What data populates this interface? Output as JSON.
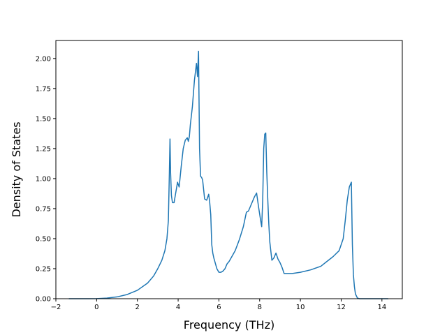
{
  "chart_data": {
    "type": "line",
    "title": "",
    "xlabel": "Frequency (THz)",
    "ylabel": "Density of States",
    "xlim": [
      -2.0,
      15.0
    ],
    "ylim": [
      0.0,
      2.15
    ],
    "grid": false,
    "legend": "none",
    "xticks": [
      -2,
      0,
      2,
      4,
      6,
      8,
      10,
      12,
      14
    ],
    "xtick_labels": [
      "−2",
      "0",
      "2",
      "4",
      "6",
      "8",
      "10",
      "12",
      "14"
    ],
    "yticks": [
      0.0,
      0.25,
      0.5,
      0.75,
      1.0,
      1.25,
      1.5,
      1.75,
      2.0
    ],
    "ytick_labels": [
      "0.00",
      "0.25",
      "0.50",
      "0.75",
      "1.00",
      "1.25",
      "1.50",
      "1.75",
      "2.00"
    ],
    "series": [
      {
        "color": "#1f77b4",
        "x": [
          -1.35,
          -1.0,
          -0.5,
          0.0,
          0.5,
          1.0,
          1.5,
          2.0,
          2.5,
          2.8,
          3.0,
          3.2,
          3.35,
          3.45,
          3.52,
          3.57,
          3.6,
          3.63,
          3.67,
          3.72,
          3.8,
          3.9,
          3.97,
          4.05,
          4.15,
          4.25,
          4.35,
          4.45,
          4.5,
          4.55,
          4.6,
          4.7,
          4.8,
          4.9,
          4.95,
          5.0,
          5.05,
          5.1,
          5.15,
          5.2,
          5.3,
          5.4,
          5.5,
          5.55,
          5.6,
          5.65,
          5.7,
          5.75,
          5.8,
          5.9,
          6.0,
          6.1,
          6.2,
          6.3,
          6.4,
          6.5,
          6.6,
          6.8,
          7.0,
          7.2,
          7.35,
          7.45,
          7.55,
          7.65,
          7.75,
          7.85,
          7.95,
          8.05,
          8.1,
          8.15,
          8.2,
          8.25,
          8.3,
          8.35,
          8.4,
          8.45,
          8.5,
          8.6,
          8.7,
          8.8,
          8.9,
          9.0,
          9.05,
          9.1,
          9.2,
          9.3,
          9.4,
          9.6,
          9.8,
          10.0,
          10.5,
          11.0,
          11.3,
          11.6,
          11.9,
          12.1,
          12.2,
          12.3,
          12.4,
          12.5,
          12.55,
          12.6,
          12.65,
          12.7,
          12.8,
          12.9,
          13.0,
          13.5,
          14.0,
          14.3
        ],
        "y": [
          0.0,
          0.0,
          0.0,
          0.001,
          0.005,
          0.015,
          0.035,
          0.07,
          0.13,
          0.19,
          0.25,
          0.32,
          0.4,
          0.5,
          0.65,
          1.05,
          1.33,
          1.05,
          0.86,
          0.8,
          0.8,
          0.9,
          0.97,
          0.93,
          1.1,
          1.25,
          1.32,
          1.34,
          1.31,
          1.35,
          1.45,
          1.6,
          1.82,
          1.96,
          1.85,
          2.06,
          1.25,
          1.02,
          1.01,
          0.99,
          0.83,
          0.82,
          0.87,
          0.8,
          0.7,
          0.45,
          0.38,
          0.34,
          0.31,
          0.25,
          0.22,
          0.22,
          0.23,
          0.25,
          0.29,
          0.31,
          0.34,
          0.4,
          0.49,
          0.6,
          0.72,
          0.73,
          0.77,
          0.81,
          0.85,
          0.88,
          0.76,
          0.65,
          0.6,
          0.82,
          1.25,
          1.37,
          1.38,
          1.05,
          0.82,
          0.62,
          0.47,
          0.32,
          0.34,
          0.38,
          0.33,
          0.3,
          0.28,
          0.26,
          0.21,
          0.21,
          0.21,
          0.21,
          0.215,
          0.22,
          0.24,
          0.27,
          0.31,
          0.35,
          0.4,
          0.5,
          0.65,
          0.82,
          0.93,
          0.97,
          0.45,
          0.2,
          0.1,
          0.04,
          0.005,
          0.0,
          0.0,
          0.0,
          0.0,
          0.0
        ]
      }
    ]
  }
}
